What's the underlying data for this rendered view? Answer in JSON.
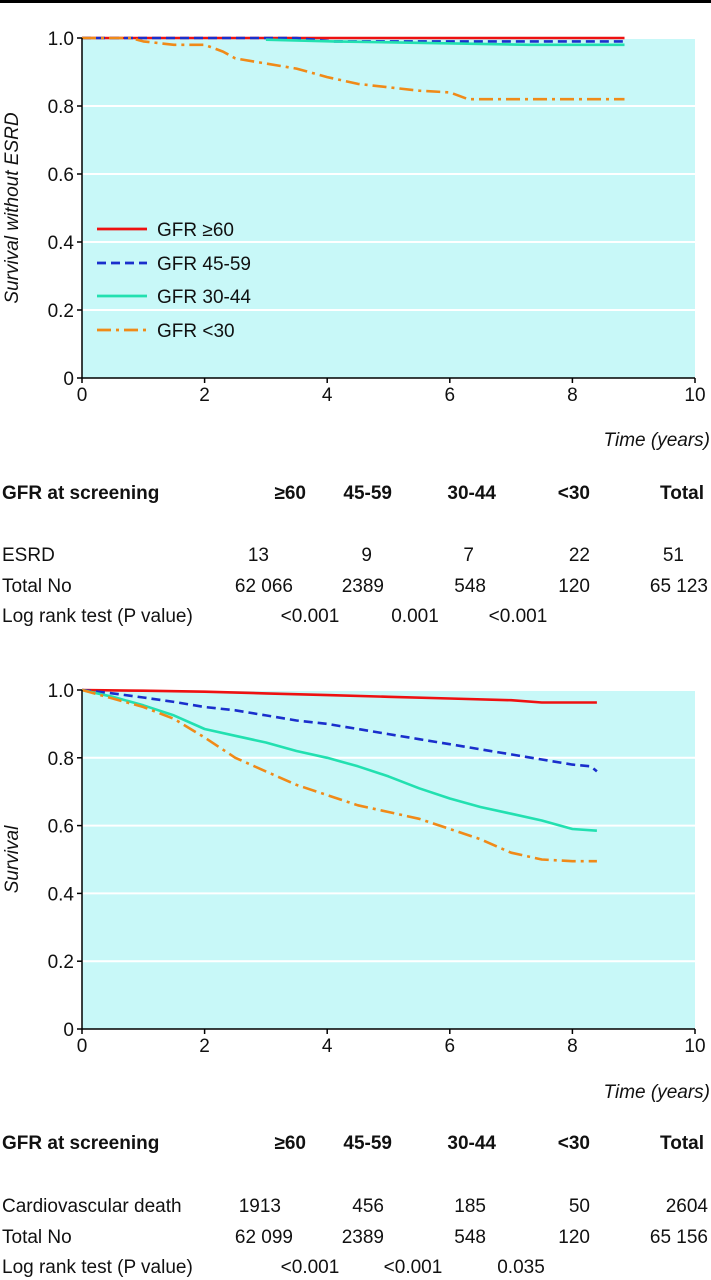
{
  "colors": {
    "plot_bg": "#c8f8f8",
    "grid": "#ffffff",
    "axis": "#000000",
    "gfr_ge60": "#ee1111",
    "gfr_45_59": "#1a2fcc",
    "gfr_30_44": "#22e0b0",
    "gfr_lt30": "#f08a18"
  },
  "chart_data": [
    {
      "type": "line",
      "ylabel": "Survival without ESRD",
      "xlabel": "Time (years)",
      "xlim": [
        0,
        10
      ],
      "ylim": [
        0,
        1.0
      ],
      "xticks": [
        "0",
        "2",
        "4",
        "6",
        "8",
        "10"
      ],
      "yticks": [
        "0",
        "0.2",
        "0.4",
        "0.6",
        "0.8",
        "1.0"
      ],
      "grid": true,
      "legend_position": "left-middle",
      "series": [
        {
          "name": "GFR ≥60",
          "color_key": "gfr_ge60",
          "dash": "solid",
          "x": [
            0,
            8.85
          ],
          "y": [
            1.0,
            1.0
          ]
        },
        {
          "name": "GFR 45-59",
          "color_key": "gfr_45_59",
          "dash": "dashed",
          "x": [
            0,
            3.5,
            4.1,
            8.85
          ],
          "y": [
            1.0,
            1.0,
            0.99,
            0.99
          ]
        },
        {
          "name": "GFR 30-44",
          "color_key": "gfr_30_44",
          "dash": "solid",
          "x": [
            3.0,
            4.1,
            7.3,
            8.85
          ],
          "y": [
            0.995,
            0.99,
            0.98,
            0.98
          ]
        },
        {
          "name": "GFR <30",
          "color_key": "gfr_lt30",
          "dash": "dashdot",
          "x": [
            0,
            0.8,
            1.0,
            1.5,
            2.0,
            2.3,
            2.5,
            3.0,
            3.5,
            3.8,
            4.0,
            4.5,
            5.0,
            5.5,
            6.0,
            6.3,
            7.0,
            8.0,
            8.85
          ],
          "y": [
            1.0,
            1.0,
            0.99,
            0.98,
            0.98,
            0.96,
            0.94,
            0.925,
            0.91,
            0.895,
            0.885,
            0.865,
            0.855,
            0.845,
            0.84,
            0.82,
            0.82,
            0.82,
            0.82
          ]
        }
      ]
    },
    {
      "type": "line",
      "ylabel": "Survival",
      "xlabel": "Time (years)",
      "xlim": [
        0,
        10
      ],
      "ylim": [
        0,
        1.0
      ],
      "xticks": [
        "0",
        "2",
        "4",
        "6",
        "8",
        "10"
      ],
      "yticks": [
        "0",
        "0.2",
        "0.4",
        "0.6",
        "0.8",
        "1.0"
      ],
      "grid": true,
      "series": [
        {
          "name": "GFR ≥60",
          "color_key": "gfr_ge60",
          "dash": "solid",
          "x": [
            0,
            1,
            2,
            3,
            4,
            5,
            6,
            7,
            7.5,
            8.4
          ],
          "y": [
            1.0,
            0.998,
            0.995,
            0.99,
            0.985,
            0.98,
            0.975,
            0.97,
            0.963,
            0.963
          ]
        },
        {
          "name": "GFR 45-59",
          "color_key": "gfr_45_59",
          "dash": "dashed",
          "x": [
            0,
            0.5,
            1,
            1.5,
            2,
            2.5,
            3,
            3.5,
            4,
            4.5,
            5,
            5.5,
            6,
            6.5,
            7,
            7.5,
            8,
            8.3,
            8.4
          ],
          "y": [
            1.0,
            0.99,
            0.978,
            0.965,
            0.95,
            0.94,
            0.925,
            0.91,
            0.9,
            0.885,
            0.87,
            0.855,
            0.84,
            0.825,
            0.81,
            0.795,
            0.78,
            0.775,
            0.76
          ]
        },
        {
          "name": "GFR 30-44",
          "color_key": "gfr_30_44",
          "dash": "solid",
          "x": [
            0,
            0.5,
            1,
            1.5,
            2,
            2.5,
            3,
            3.5,
            4,
            4.5,
            5,
            5.5,
            6,
            6.5,
            7,
            7.5,
            8,
            8.4
          ],
          "y": [
            1.0,
            0.98,
            0.955,
            0.925,
            0.885,
            0.865,
            0.845,
            0.82,
            0.8,
            0.775,
            0.745,
            0.71,
            0.68,
            0.655,
            0.635,
            0.615,
            0.59,
            0.585
          ]
        },
        {
          "name": "GFR <30",
          "color_key": "gfr_lt30",
          "dash": "dashdot",
          "x": [
            0,
            0.5,
            1,
            1.5,
            2,
            2.5,
            3,
            3.5,
            4,
            4.5,
            5,
            5.5,
            6,
            6.5,
            7,
            7.5,
            8,
            8.4
          ],
          "y": [
            1.0,
            0.975,
            0.95,
            0.915,
            0.86,
            0.8,
            0.76,
            0.72,
            0.69,
            0.66,
            0.64,
            0.62,
            0.59,
            0.56,
            0.52,
            0.5,
            0.495,
            0.495
          ]
        }
      ]
    }
  ],
  "table1": {
    "header": [
      "GFR at screening",
      "≥60",
      "45-59",
      "30-44",
      "<30",
      "Total"
    ],
    "rows": [
      {
        "label": "ESRD",
        "values": [
          "13",
          "9",
          "7",
          "22",
          "51"
        ]
      },
      {
        "label": "Total No",
        "values": [
          "62 066",
          "2389",
          "548",
          "120",
          "65 123"
        ]
      }
    ],
    "logrank": {
      "label": "Log rank test (P value)",
      "values": [
        "<0.001",
        "0.001",
        "<0.001"
      ]
    }
  },
  "table2": {
    "header": [
      "GFR at screening",
      "≥60",
      "45-59",
      "30-44",
      "<30",
      "Total"
    ],
    "rows": [
      {
        "label": "Cardiovascular death",
        "values": [
          "1913",
          "456",
          "185",
          "50",
          "2604"
        ]
      },
      {
        "label": "Total No",
        "values": [
          "62 099",
          "2389",
          "548",
          "120",
          "65 156"
        ]
      }
    ],
    "logrank": {
      "label": "Log rank test (P value)",
      "values": [
        "<0.001",
        "<0.001",
        "0.035"
      ]
    }
  }
}
